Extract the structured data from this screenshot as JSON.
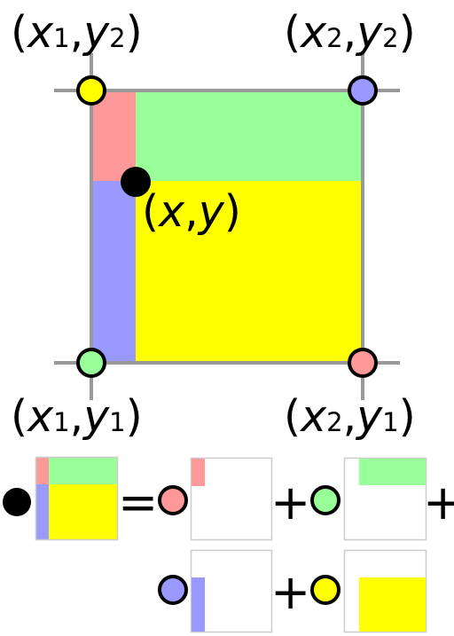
{
  "corners": {
    "top_left": {
      "open": "(",
      "var1": "x",
      "sub1": "1",
      "comma": ",",
      "var2": "y",
      "sub2": "2",
      "close": ")",
      "color": "#ffff00"
    },
    "top_right": {
      "open": "(",
      "var1": "x",
      "sub1": "2",
      "comma": ",",
      "var2": "y",
      "sub2": "2",
      "close": ")",
      "color": "#9999ff"
    },
    "bottom_left": {
      "open": "(",
      "var1": "x",
      "sub1": "1",
      "comma": ",",
      "var2": "y",
      "sub2": "1",
      "close": ")",
      "color": "#99ff99"
    },
    "bottom_right": {
      "open": "(",
      "var1": "x",
      "sub1": "2",
      "comma": ",",
      "var2": "y",
      "sub2": "1",
      "close": ")",
      "color": "#ff9999"
    }
  },
  "interior_point": {
    "open": "(",
    "var1": "x",
    "comma": ",",
    "var2": "y",
    "close": ")",
    "color": "#000000"
  },
  "region_colors": {
    "top_left": "#ff9999",
    "top_right": "#99ff99",
    "bottom_left": "#9999ff",
    "bottom_right": "#ffff00"
  },
  "formula": {
    "equals": "=",
    "plus": "+"
  }
}
